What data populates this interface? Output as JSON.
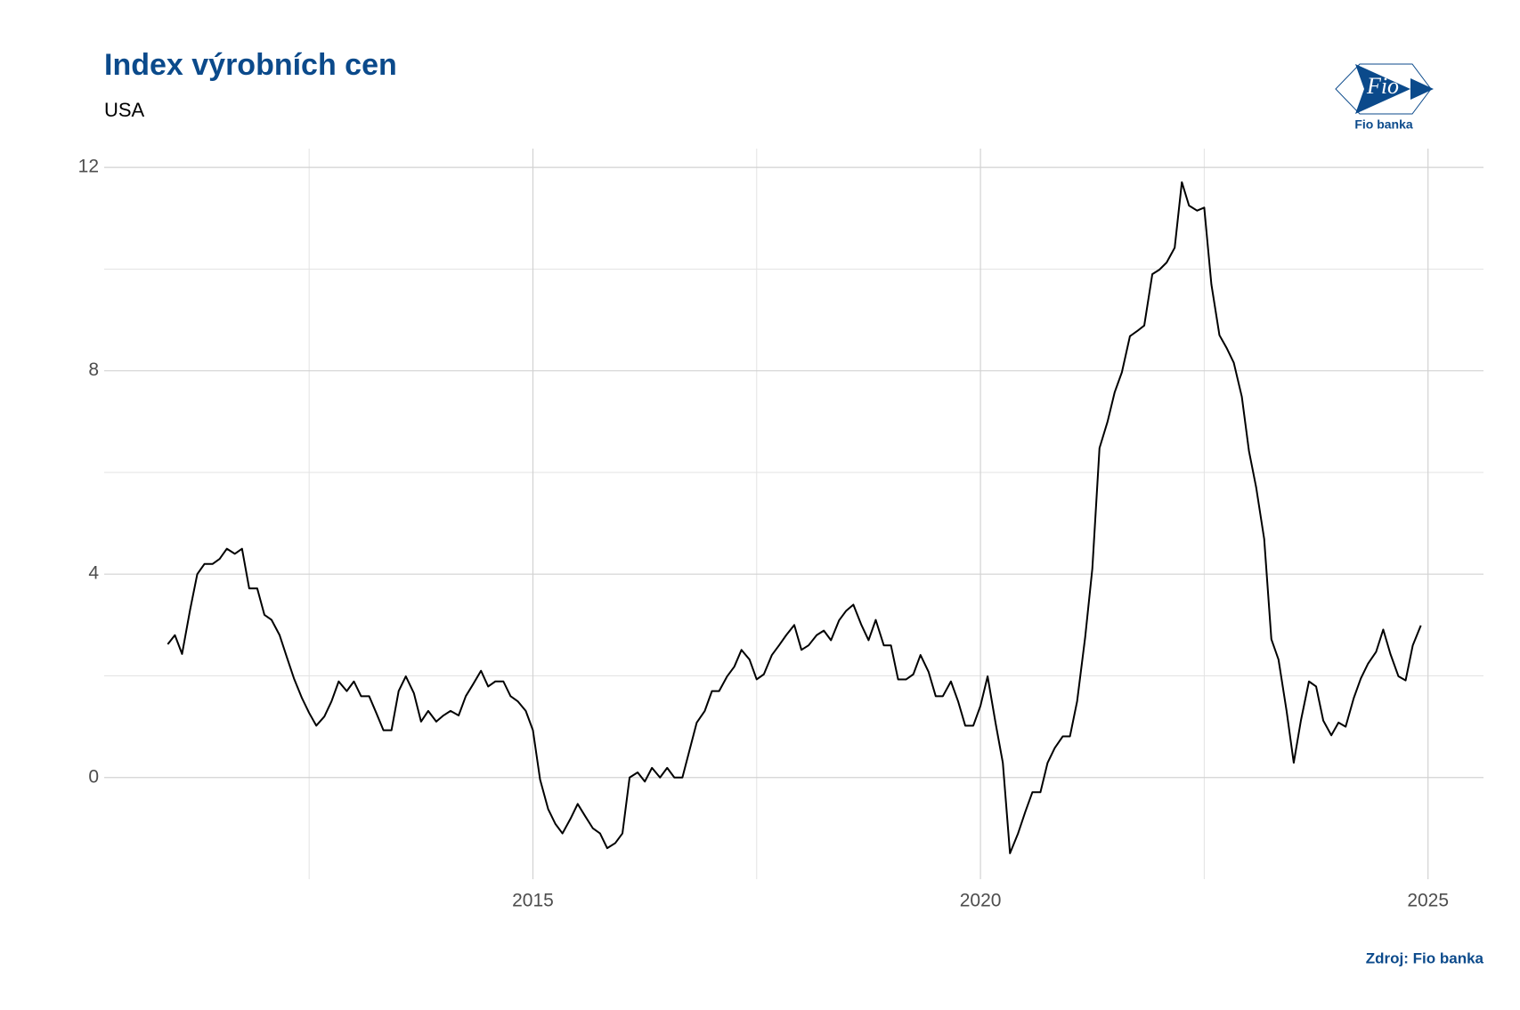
{
  "chart_data": {
    "type": "line",
    "title": "Index výrobních cen",
    "subtitle": "USA",
    "source": "Zdroj: Fio banka",
    "x": [
      2010.92,
      2011.0,
      2011.08,
      2011.17,
      2011.25,
      2011.33,
      2011.42,
      2011.5,
      2011.58,
      2011.67,
      2011.75,
      2011.83,
      2011.92,
      2012.0,
      2012.08,
      2012.17,
      2012.25,
      2012.33,
      2012.42,
      2012.5,
      2012.58,
      2012.67,
      2012.75,
      2012.83,
      2012.92,
      2013.0,
      2013.08,
      2013.17,
      2013.25,
      2013.33,
      2013.42,
      2013.5,
      2013.58,
      2013.67,
      2013.75,
      2013.83,
      2013.92,
      2014.0,
      2014.08,
      2014.17,
      2014.25,
      2014.33,
      2014.42,
      2014.5,
      2014.58,
      2014.67,
      2014.75,
      2014.83,
      2014.92,
      2015.0,
      2015.08,
      2015.17,
      2015.25,
      2015.33,
      2015.42,
      2015.5,
      2015.58,
      2015.67,
      2015.75,
      2015.83,
      2015.92,
      2016.0,
      2016.08,
      2016.17,
      2016.25,
      2016.33,
      2016.42,
      2016.5,
      2016.58,
      2016.67,
      2016.75,
      2016.83,
      2016.92,
      2017.0,
      2017.08,
      2017.17,
      2017.25,
      2017.33,
      2017.42,
      2017.5,
      2017.58,
      2017.67,
      2017.75,
      2017.83,
      2017.92,
      2018.0,
      2018.08,
      2018.17,
      2018.25,
      2018.33,
      2018.42,
      2018.5,
      2018.58,
      2018.67,
      2018.75,
      2018.83,
      2018.92,
      2019.0,
      2019.08,
      2019.17,
      2019.25,
      2019.33,
      2019.42,
      2019.5,
      2019.58,
      2019.67,
      2019.75,
      2019.83,
      2019.92,
      2020.0,
      2020.08,
      2020.17,
      2020.25,
      2020.33,
      2020.42,
      2020.5,
      2020.58,
      2020.67,
      2020.75,
      2020.83,
      2020.92,
      2021.0,
      2021.08,
      2021.17,
      2021.25,
      2021.33,
      2021.42,
      2021.5,
      2021.58,
      2021.67,
      2021.75,
      2021.83,
      2021.92,
      2022.0,
      2022.08,
      2022.17,
      2022.25,
      2022.33,
      2022.42,
      2022.5,
      2022.58,
      2022.67,
      2022.75,
      2022.83,
      2022.92,
      2023.0,
      2023.08,
      2023.17,
      2023.25,
      2023.33,
      2023.42,
      2023.5,
      2023.58,
      2023.67,
      2023.75,
      2023.83,
      2023.92,
      2024.0,
      2024.08,
      2024.17,
      2024.25,
      2024.33,
      2024.42,
      2024.5,
      2024.58,
      2024.67,
      2024.75,
      2024.83,
      2024.92
    ],
    "values": [
      2.62,
      2.8,
      2.43,
      3.3,
      4.0,
      4.2,
      4.2,
      4.3,
      4.5,
      4.4,
      4.5,
      3.72,
      3.72,
      3.2,
      3.1,
      2.8,
      2.37,
      1.95,
      1.56,
      1.27,
      1.02,
      1.2,
      1.5,
      1.89,
      1.7,
      1.89,
      1.6,
      1.6,
      1.27,
      0.93,
      0.93,
      1.7,
      1.99,
      1.66,
      1.1,
      1.31,
      1.1,
      1.22,
      1.31,
      1.22,
      1.6,
      1.83,
      2.1,
      1.79,
      1.89,
      1.89,
      1.6,
      1.5,
      1.31,
      0.93,
      -0.04,
      -0.62,
      -0.91,
      -1.1,
      -0.81,
      -0.52,
      -0.75,
      -1.0,
      -1.1,
      -1.39,
      -1.29,
      -1.1,
      0,
      0.1,
      -0.08,
      0.19,
      0,
      0.19,
      0,
      0,
      0.54,
      1.08,
      1.31,
      1.7,
      1.7,
      1.99,
      2.18,
      2.51,
      2.32,
      1.93,
      2.03,
      2.41,
      2.6,
      2.8,
      3.0,
      2.51,
      2.6,
      2.8,
      2.89,
      2.7,
      3.09,
      3.28,
      3.4,
      3.0,
      2.7,
      3.1,
      2.6,
      2.6,
      1.93,
      1.93,
      2.03,
      2.41,
      2.08,
      1.6,
      1.6,
      1.89,
      1.5,
      1.02,
      1.02,
      1.41,
      1.99,
      1.06,
      0.29,
      -1.49,
      -1.1,
      -0.68,
      -0.29,
      -0.29,
      0.29,
      0.58,
      0.81,
      0.81,
      1.5,
      2.76,
      4.11,
      6.48,
      7.0,
      7.58,
      7.97,
      8.68,
      8.78,
      8.89,
      9.9,
      9.99,
      10.13,
      10.42,
      11.71,
      11.25,
      11.15,
      11.21,
      9.7,
      8.7,
      8.45,
      8.16,
      7.49,
      6.42,
      5.71,
      4.69,
      2.72,
      2.32,
      1.31,
      0.29,
      1.12,
      1.89,
      1.79,
      1.12,
      0.83,
      1.08,
      1.0,
      1.56,
      1.95,
      2.24,
      2.47,
      2.91,
      2.43,
      1.99,
      1.91,
      2.6,
      2.99
    ],
    "color": "#000000",
    "xlim": [
      2010.21,
      2025.62
    ],
    "xticks": [
      2015,
      2020,
      2025
    ],
    "xminor": [
      2012.5,
      2017.5,
      2022.5
    ],
    "ylim": [
      -2.0,
      12.37
    ],
    "yticks": [
      0,
      4,
      8,
      12
    ],
    "yminor": [
      2,
      6,
      10
    ],
    "grid": true
  },
  "logo": {
    "mark": "Fio",
    "caption": "Fio banka"
  }
}
